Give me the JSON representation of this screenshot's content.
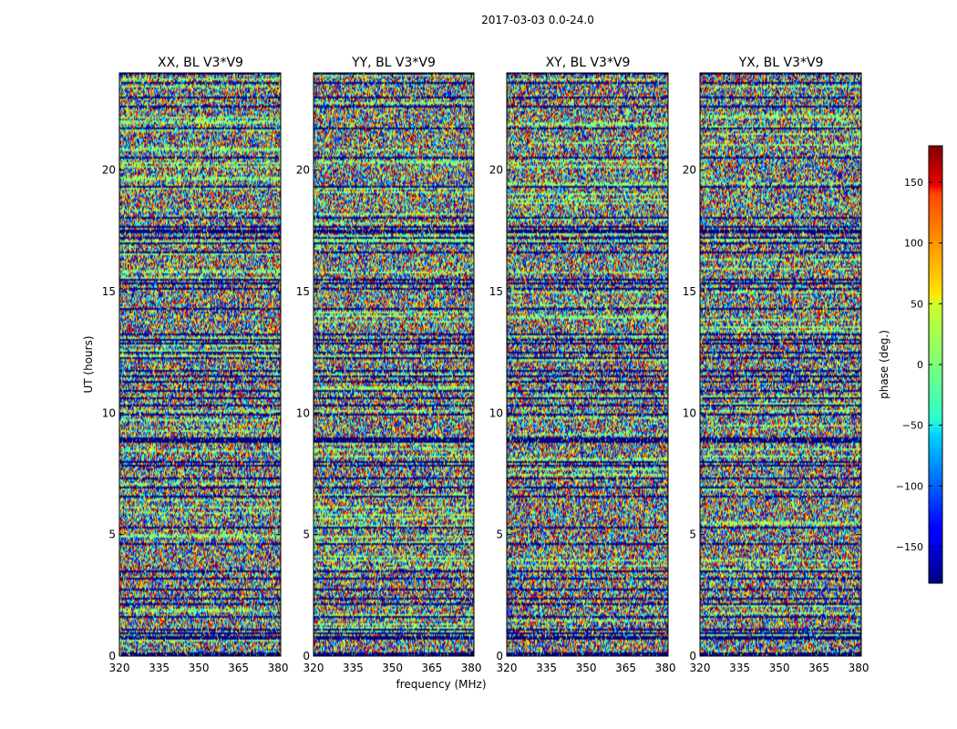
{
  "chart_data": {
    "type": "heatmap",
    "suptitle": "2017-03-03 0.0-24.0",
    "panels": [
      {
        "title": "XX, BL V3*V9"
      },
      {
        "title": "YY, BL V3*V9"
      },
      {
        "title": "XY, BL V3*V9"
      },
      {
        "title": "YX, BL V3*V9"
      }
    ],
    "xlabel": "frequency (MHz)",
    "ylabel": "UT (hours)",
    "xlim": [
      320,
      381
    ],
    "xticks": [
      320,
      335,
      350,
      365,
      380
    ],
    "ylim": [
      0,
      24
    ],
    "yticks": [
      0,
      5,
      10,
      15,
      20
    ],
    "colorbar": {
      "label": "phase (deg.)",
      "range": [
        -180,
        180
      ],
      "ticks": [
        -150,
        -100,
        -50,
        0,
        50,
        100,
        150
      ],
      "tick_labels": [
        "−150",
        "−100",
        "−50",
        "0",
        "50",
        "100",
        "150"
      ],
      "colormap": "jet"
    },
    "data_description": "random phase noise across all cells with horizontal time rows of near -180 phase (dark blue flagged rows)",
    "flag_rows_hours": [
      0.7,
      0.9,
      1.1,
      1.6,
      2.1,
      3.2,
      3.5,
      4.6,
      5.3,
      6.6,
      6.9,
      7.3,
      7.8,
      8.0,
      8.9,
      9.9,
      10.3,
      10.6,
      10.9,
      11.3,
      11.5,
      11.7,
      12.5,
      13.0,
      14.3,
      15.1,
      15.3,
      15.5,
      16.6,
      17.0,
      17.2,
      17.4,
      18.0,
      19.3,
      20.5,
      21.7,
      22.6,
      23.0,
      23.6
    ]
  }
}
